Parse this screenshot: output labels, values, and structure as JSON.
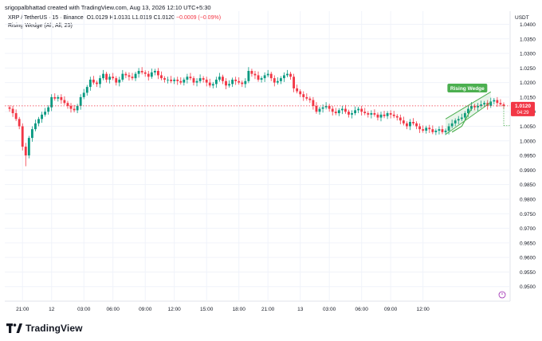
{
  "header": {
    "created_by": "srigopalbhattad created with TradingView.com, Aug 13, 2026 12:10 UTC+5:30"
  },
  "symbol": {
    "title": "XRP / TetherUS · 15 · Binance",
    "ohlc_o": "O1.0129",
    "ohlc_h": "H1.0131",
    "ohlc_l": "L1.0119",
    "ohlc_c": "C1.0120",
    "change": "−0.0009 (−0.09%)"
  },
  "indicator": {
    "label": "Rising Wedge (All, All, 25)"
  },
  "currency": "USDT",
  "brand": "TradingView",
  "colors": {
    "up": "#089981",
    "down": "#f23645",
    "pattern": "#4caf50",
    "last_price_bg": "#f23645"
  },
  "chart_data": {
    "type": "candlestick",
    "ylim": [
      0.945,
      1.0445
    ],
    "yticks": [
      "1.0400",
      "1.0350",
      "1.0300",
      "1.0250",
      "1.0200",
      "1.0150",
      "1.0100",
      "1.0050",
      "1.0000",
      "0.9950",
      "0.9900",
      "0.9850",
      "0.9800",
      "0.9750",
      "0.9700",
      "0.9650",
      "0.9600",
      "0.9550",
      "0.9500"
    ],
    "xticks": [
      "21:00",
      "12",
      "03:00",
      "06:00",
      "09:00",
      "12:00",
      "15:00",
      "18:00",
      "21:00",
      "13",
      "03:00",
      "06:00",
      "09:00",
      "12:00"
    ],
    "last_price": {
      "value": "1.0120",
      "countdown": "04:29"
    },
    "pattern": {
      "label": "Rising Wedge"
    },
    "close_series": [
      1.011,
      1.0095,
      1.0075,
      1.005,
      0.998,
      0.995,
      1.001,
      1.004,
      1.006,
      1.0075,
      1.009,
      1.01,
      1.0115,
      1.015,
      1.0145,
      1.015,
      1.014,
      1.013,
      1.012,
      1.011,
      1.0105,
      1.012,
      1.015,
      1.0165,
      1.0185,
      1.021,
      1.02,
      1.0195,
      1.0215,
      1.023,
      1.021,
      1.022,
      1.0215,
      1.02,
      1.021,
      1.023,
      1.0225,
      1.022,
      1.0215,
      1.023,
      1.024,
      1.0235,
      1.023,
      1.022,
      1.0235,
      1.024,
      1.0225,
      1.0215,
      1.021,
      1.021,
      1.0205,
      1.021,
      1.0205,
      1.02,
      1.021,
      1.022,
      1.0215,
      1.02,
      1.0205,
      1.0215,
      1.021,
      1.02,
      1.019,
      1.0195,
      1.021,
      1.022,
      1.0205,
      1.019,
      1.0195,
      1.021,
      1.0205,
      1.02,
      1.0195,
      1.0205,
      1.024,
      1.023,
      1.0225,
      1.021,
      1.0215,
      1.0225,
      1.023,
      1.0215,
      1.02,
      1.0205,
      1.0215,
      1.0225,
      1.023,
      1.022,
      1.018,
      1.017,
      1.016,
      1.015,
      1.0145,
      1.014,
      1.012,
      1.01,
      1.011,
      1.0115,
      1.012,
      1.011,
      1.01,
      1.0095,
      1.0105,
      1.011,
      1.01,
      1.009,
      1.0095,
      1.0105,
      1.011,
      1.01,
      1.0095,
      1.009,
      1.0095,
      1.009,
      1.008,
      1.009,
      1.0085,
      1.0095,
      1.009,
      1.0085,
      1.008,
      1.007,
      1.006,
      1.005,
      1.0065,
      1.006,
      1.005,
      1.004,
      1.0035,
      1.0045,
      1.004,
      1.003,
      1.0035,
      1.004,
      1.003,
      1.0035,
      1.005,
      1.006,
      1.007,
      1.0075,
      1.008,
      1.0095,
      1.011,
      1.012,
      1.0115,
      1.012,
      1.0125,
      1.013,
      1.012,
      1.0135,
      1.014,
      1.013,
      1.0125,
      1.012
    ]
  }
}
